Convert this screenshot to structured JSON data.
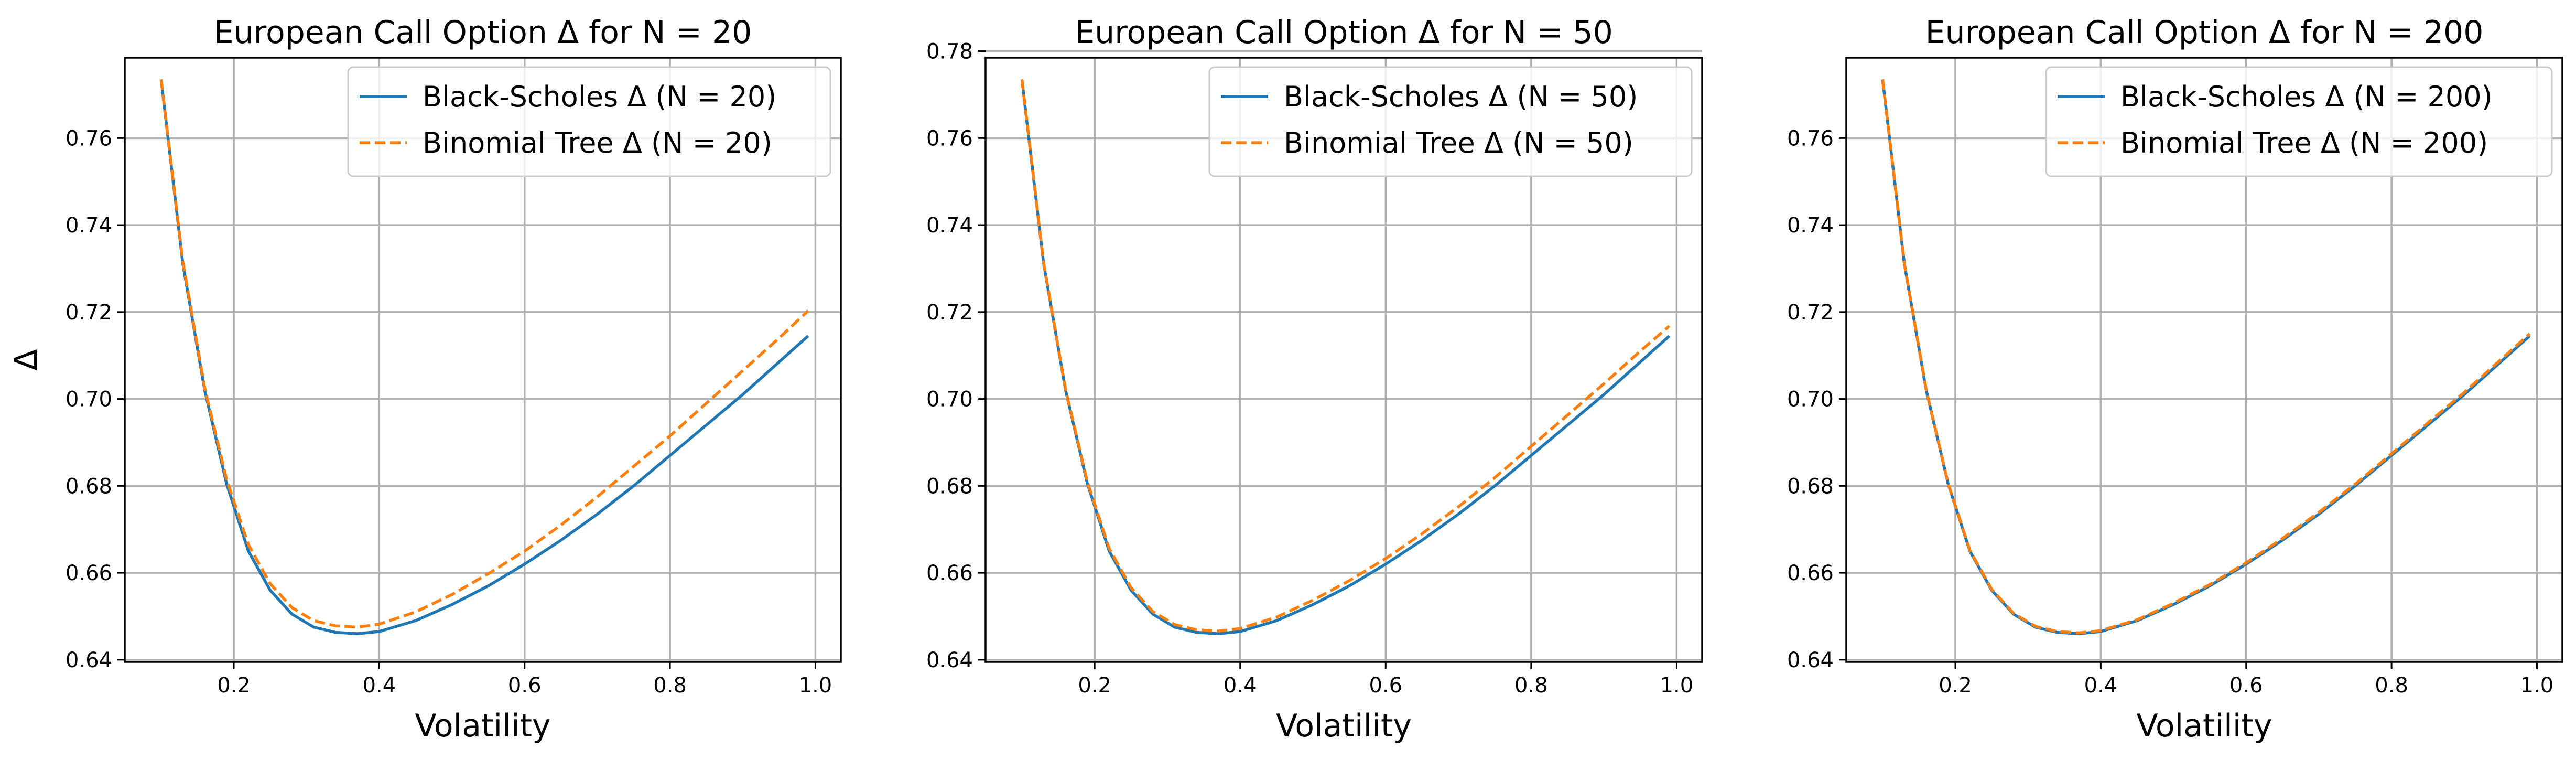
{
  "figure": {
    "ylabel": "Δ",
    "xlabel": "Volatility",
    "colors": {
      "black_scholes": "#1f77b4",
      "binomial": "#ff7f0e",
      "grid": "#b0b0b0"
    }
  },
  "chart_data": [
    {
      "type": "line",
      "title": "European Call Option Δ for N = 20",
      "xlabel": "Volatility",
      "ylabel": "Δ",
      "xlim": [
        0.05,
        1.035
      ],
      "ylim": [
        0.6395,
        0.7785
      ],
      "x_ticks": [
        "0.2",
        "0.4",
        "0.6",
        "0.8",
        "1.0"
      ],
      "y_ticks": [
        "0.64",
        "0.66",
        "0.68",
        "0.70",
        "0.72",
        "0.74",
        "0.76"
      ],
      "grid": true,
      "legend_position": "top-right",
      "series": [
        {
          "name": "Black-Scholes Δ (N = 20)",
          "style": "solid",
          "color": "#1f77b4",
          "x": [
            0.1,
            0.13,
            0.16,
            0.19,
            0.22,
            0.25,
            0.28,
            0.31,
            0.34,
            0.37,
            0.4,
            0.45,
            0.5,
            0.55,
            0.6,
            0.65,
            0.7,
            0.75,
            0.8,
            0.85,
            0.9,
            0.95,
            0.99
          ],
          "y": [
            0.7735,
            0.731,
            0.702,
            0.6805,
            0.665,
            0.656,
            0.6505,
            0.6475,
            0.6463,
            0.646,
            0.6465,
            0.649,
            0.6527,
            0.657,
            0.662,
            0.6675,
            0.6735,
            0.68,
            0.687,
            0.694,
            0.701,
            0.7085,
            0.7145
          ]
        },
        {
          "name": "Binomial Tree Δ (N = 20)",
          "style": "dashed",
          "color": "#ff7f0e",
          "x": [
            0.1,
            0.13,
            0.16,
            0.19,
            0.22,
            0.25,
            0.28,
            0.31,
            0.34,
            0.37,
            0.4,
            0.45,
            0.5,
            0.55,
            0.6,
            0.65,
            0.7,
            0.75,
            0.8,
            0.85,
            0.9,
            0.95,
            0.99
          ],
          "y": [
            0.7735,
            0.7315,
            0.7025,
            0.6815,
            0.6665,
            0.6575,
            0.652,
            0.649,
            0.6478,
            0.6475,
            0.6482,
            0.651,
            0.655,
            0.6598,
            0.665,
            0.671,
            0.6775,
            0.6845,
            0.6915,
            0.699,
            0.7065,
            0.714,
            0.7203
          ]
        }
      ]
    },
    {
      "type": "line",
      "title": "European Call Option Δ for N = 50",
      "xlabel": "Volatility",
      "ylabel": "",
      "xlim": [
        0.05,
        1.035
      ],
      "ylim": [
        0.6395,
        0.7785
      ],
      "x_ticks": [
        "0.2",
        "0.4",
        "0.6",
        "0.8",
        "1.0"
      ],
      "y_ticks": [
        "0.64",
        "0.66",
        "0.68",
        "0.70",
        "0.72",
        "0.74",
        "0.76",
        "0.78"
      ],
      "grid": true,
      "legend_position": "top-right",
      "series": [
        {
          "name": "Black-Scholes Δ (N = 50)",
          "style": "solid",
          "color": "#1f77b4",
          "x": [
            0.1,
            0.13,
            0.16,
            0.19,
            0.22,
            0.25,
            0.28,
            0.31,
            0.34,
            0.37,
            0.4,
            0.45,
            0.5,
            0.55,
            0.6,
            0.65,
            0.7,
            0.75,
            0.8,
            0.85,
            0.9,
            0.95,
            0.99
          ],
          "y": [
            0.7735,
            0.731,
            0.702,
            0.6805,
            0.665,
            0.656,
            0.6505,
            0.6475,
            0.6463,
            0.646,
            0.6465,
            0.649,
            0.6527,
            0.657,
            0.662,
            0.6675,
            0.6735,
            0.68,
            0.687,
            0.694,
            0.701,
            0.7085,
            0.7145
          ]
        },
        {
          "name": "Binomial Tree Δ (N = 50)",
          "style": "dashed",
          "color": "#ff7f0e",
          "x": [
            0.1,
            0.13,
            0.16,
            0.19,
            0.22,
            0.25,
            0.28,
            0.31,
            0.34,
            0.37,
            0.4,
            0.45,
            0.5,
            0.55,
            0.6,
            0.65,
            0.7,
            0.75,
            0.8,
            0.85,
            0.9,
            0.95,
            0.99
          ],
          "y": [
            0.7735,
            0.7312,
            0.7022,
            0.6809,
            0.6656,
            0.6566,
            0.6511,
            0.6481,
            0.6469,
            0.6466,
            0.6472,
            0.6498,
            0.6537,
            0.6582,
            0.6633,
            0.669,
            0.6752,
            0.6819,
            0.6891,
            0.6963,
            0.7035,
            0.711,
            0.7168
          ]
        }
      ]
    },
    {
      "type": "line",
      "title": "European Call Option Δ for N = 200",
      "xlabel": "Volatility",
      "ylabel": "",
      "xlim": [
        0.05,
        1.035
      ],
      "ylim": [
        0.6395,
        0.7785
      ],
      "x_ticks": [
        "0.2",
        "0.4",
        "0.6",
        "0.8",
        "1.0"
      ],
      "y_ticks": [
        "0.64",
        "0.66",
        "0.68",
        "0.70",
        "0.72",
        "0.74",
        "0.76"
      ],
      "grid": true,
      "legend_position": "top-right",
      "series": [
        {
          "name": "Black-Scholes Δ (N = 200)",
          "style": "solid",
          "color": "#1f77b4",
          "x": [
            0.1,
            0.13,
            0.16,
            0.19,
            0.22,
            0.25,
            0.28,
            0.31,
            0.34,
            0.37,
            0.4,
            0.45,
            0.5,
            0.55,
            0.6,
            0.65,
            0.7,
            0.75,
            0.8,
            0.85,
            0.9,
            0.95,
            0.99
          ],
          "y": [
            0.7735,
            0.731,
            0.702,
            0.6805,
            0.665,
            0.656,
            0.6505,
            0.6475,
            0.6463,
            0.646,
            0.6465,
            0.649,
            0.6527,
            0.657,
            0.662,
            0.6675,
            0.6735,
            0.68,
            0.687,
            0.694,
            0.701,
            0.7085,
            0.7145
          ]
        },
        {
          "name": "Binomial Tree Δ (N = 200)",
          "style": "dashed",
          "color": "#ff7f0e",
          "x": [
            0.1,
            0.13,
            0.16,
            0.19,
            0.22,
            0.25,
            0.28,
            0.31,
            0.34,
            0.37,
            0.4,
            0.45,
            0.5,
            0.55,
            0.6,
            0.65,
            0.7,
            0.75,
            0.8,
            0.85,
            0.9,
            0.95,
            0.99
          ],
          "y": [
            0.7735,
            0.7311,
            0.7021,
            0.6806,
            0.6652,
            0.6562,
            0.6507,
            0.6477,
            0.6465,
            0.6462,
            0.6467,
            0.6492,
            0.653,
            0.6573,
            0.6623,
            0.6679,
            0.6739,
            0.6804,
            0.6874,
            0.6945,
            0.7015,
            0.709,
            0.715
          ]
        }
      ]
    }
  ]
}
